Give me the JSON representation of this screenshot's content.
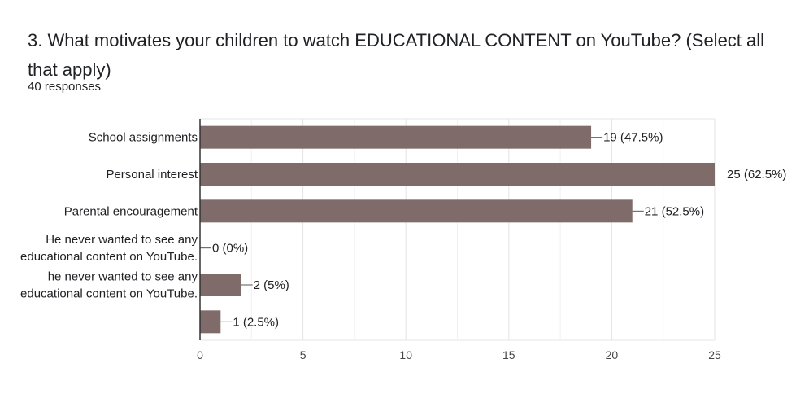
{
  "question": {
    "title": "3.  What motivates your children to watch  EDUCATIONAL CONTENT on YouTube? (Select all that apply)",
    "responses": "40 responses"
  },
  "colors": {
    "bar": "#7f6b69",
    "grid": "#e6e6e6",
    "axis": "#333333"
  },
  "chart_data": {
    "type": "bar",
    "orientation": "horizontal",
    "categories": [
      [
        "School assignments"
      ],
      [
        "Personal interest"
      ],
      [
        "Parental encouragement"
      ],
      [
        "He never wanted to see any",
        "educational content on YouTube."
      ],
      [
        "he never wanted to see any",
        "educational content on YouTube."
      ],
      [
        ""
      ]
    ],
    "values": [
      19,
      25,
      21,
      0,
      2,
      1
    ],
    "data_labels": [
      "19 (47.5%)",
      "25 (62.5%)",
      "21 (52.5%)",
      "0 (0%)",
      "2 (5%)",
      "1 (2.5%)"
    ],
    "xlim": [
      0,
      25
    ],
    "xticks": [
      0,
      5,
      10,
      15,
      20,
      25
    ],
    "grid": true
  }
}
